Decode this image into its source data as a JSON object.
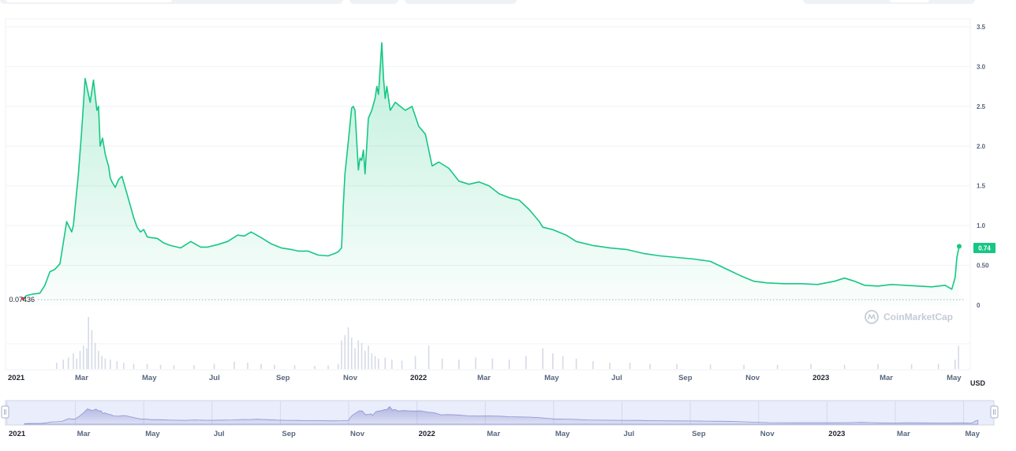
{
  "chart_data": {
    "type": "area",
    "currency_label": "USD",
    "start_value_label": "0.07436",
    "current_price_label": "0.74",
    "watermark": "CoinMarketCap",
    "y_ticks": [
      "0",
      "0.50",
      "1.0",
      "1.5",
      "2.0",
      "2.5",
      "3.0",
      "3.5"
    ],
    "y_tick_values": [
      0,
      0.5,
      1.0,
      1.5,
      2.0,
      2.5,
      3.0,
      3.5
    ],
    "ylim": [
      0,
      3.5
    ],
    "xlim": [
      0,
      28.75
    ],
    "grid": true,
    "x_ticks": [
      {
        "label": "2021",
        "at": 0,
        "strong": true
      },
      {
        "label": "Mar",
        "at": 2,
        "strong": false
      },
      {
        "label": "May",
        "at": 4,
        "strong": false
      },
      {
        "label": "Jul",
        "at": 6,
        "strong": false
      },
      {
        "label": "Sep",
        "at": 8,
        "strong": false
      },
      {
        "label": "Nov",
        "at": 10,
        "strong": false
      },
      {
        "label": "2022",
        "at": 12,
        "strong": true
      },
      {
        "label": "Mar",
        "at": 14,
        "strong": false
      },
      {
        "label": "May",
        "at": 16,
        "strong": false
      },
      {
        "label": "Jul",
        "at": 18,
        "strong": false
      },
      {
        "label": "Sep",
        "at": 20,
        "strong": false
      },
      {
        "label": "Nov",
        "at": 22,
        "strong": false
      },
      {
        "label": "2023",
        "at": 24,
        "strong": true
      },
      {
        "label": "Mar",
        "at": 26,
        "strong": false
      },
      {
        "label": "May",
        "at": 28,
        "strong": false
      }
    ],
    "navigator_ticks": [
      {
        "label": "2021",
        "at": 0,
        "strong": true
      },
      {
        "label": "Mar",
        "at": 2,
        "strong": false
      },
      {
        "label": "May",
        "at": 4,
        "strong": false
      },
      {
        "label": "Jul",
        "at": 6,
        "strong": false
      },
      {
        "label": "Sep",
        "at": 8,
        "strong": false
      },
      {
        "label": "Nov",
        "at": 10,
        "strong": false
      },
      {
        "label": "2022",
        "at": 12,
        "strong": true
      },
      {
        "label": "Mar",
        "at": 14,
        "strong": false
      },
      {
        "label": "May",
        "at": 16,
        "strong": false
      },
      {
        "label": "Jul",
        "at": 18,
        "strong": false
      },
      {
        "label": "Sep",
        "at": 20,
        "strong": false
      },
      {
        "label": "Nov",
        "at": 22,
        "strong": false
      },
      {
        "label": "2023",
        "at": 24,
        "strong": true
      },
      {
        "label": "Mar",
        "at": 26,
        "strong": false
      },
      {
        "label": "May",
        "at": 28,
        "strong": false
      }
    ],
    "series": [
      {
        "type": "line",
        "x": [
          0.5,
          0.6,
          0.8,
          1.0,
          1.15,
          1.3,
          1.45,
          1.6,
          1.8,
          1.95,
          2.0,
          2.15,
          2.25,
          2.35,
          2.5,
          2.6,
          2.7,
          2.75,
          2.8,
          2.87,
          2.95,
          3.0,
          3.05,
          3.1,
          3.15,
          3.25,
          3.35,
          3.45,
          3.6,
          3.8,
          3.9,
          4.0,
          4.1,
          4.2,
          4.3,
          4.5,
          4.7,
          4.9,
          5.2,
          5.5,
          5.8,
          6.0,
          6.3,
          6.6,
          6.9,
          7.1,
          7.3,
          7.6,
          7.9,
          8.2,
          8.5,
          8.7,
          9.0,
          9.3,
          9.6,
          9.8,
          9.9,
          10.0,
          10.05,
          10.1,
          10.2,
          10.3,
          10.35,
          10.4,
          10.5,
          10.55,
          10.6,
          10.65,
          10.7,
          10.75,
          10.8,
          10.9,
          11.0,
          11.05,
          11.1,
          11.2,
          11.25,
          11.3,
          11.35,
          11.45,
          11.6,
          11.75,
          11.9,
          12.1,
          12.3,
          12.5,
          12.7,
          12.9,
          13.2,
          13.5,
          13.8,
          14.1,
          14.4,
          14.7,
          15.0,
          15.3,
          15.6,
          15.9,
          16.0,
          16.3,
          16.7,
          17.0,
          17.5,
          18.0,
          18.5,
          19.0,
          19.5,
          20.0,
          20.5,
          21.0,
          21.5,
          21.9,
          22.3,
          22.7,
          23.2,
          23.7,
          24.2,
          24.7,
          25.0,
          25.3,
          25.6,
          26.0,
          26.4,
          26.8,
          27.2,
          27.6,
          28.0,
          28.2,
          28.3,
          28.35,
          28.42
        ],
        "y": [
          0.08,
          0.12,
          0.14,
          0.15,
          0.25,
          0.42,
          0.45,
          0.52,
          1.05,
          0.92,
          1.0,
          1.65,
          2.2,
          2.85,
          2.55,
          2.83,
          2.45,
          2.5,
          2.0,
          2.1,
          1.9,
          1.82,
          1.75,
          1.6,
          1.55,
          1.48,
          1.58,
          1.62,
          1.4,
          1.1,
          0.98,
          0.92,
          0.95,
          0.86,
          0.85,
          0.84,
          0.78,
          0.75,
          0.72,
          0.8,
          0.73,
          0.73,
          0.76,
          0.8,
          0.88,
          0.87,
          0.92,
          0.85,
          0.77,
          0.72,
          0.7,
          0.68,
          0.68,
          0.63,
          0.62,
          0.65,
          0.67,
          0.72,
          1.25,
          1.65,
          2.05,
          2.48,
          2.5,
          2.45,
          1.7,
          1.85,
          1.82,
          1.95,
          1.65,
          2.0,
          2.35,
          2.45,
          2.6,
          2.75,
          2.65,
          3.3,
          2.85,
          2.6,
          2.75,
          2.45,
          2.55,
          2.5,
          2.45,
          2.5,
          2.25,
          2.15,
          1.75,
          1.8,
          1.72,
          1.56,
          1.52,
          1.55,
          1.5,
          1.4,
          1.35,
          1.32,
          1.2,
          1.05,
          0.98,
          0.95,
          0.88,
          0.8,
          0.75,
          0.72,
          0.7,
          0.65,
          0.62,
          0.6,
          0.58,
          0.55,
          0.45,
          0.37,
          0.3,
          0.28,
          0.27,
          0.27,
          0.26,
          0.3,
          0.34,
          0.3,
          0.25,
          0.24,
          0.26,
          0.25,
          0.24,
          0.23,
          0.25,
          0.2,
          0.35,
          0.6,
          0.74
        ]
      },
      {
        "type": "volume_bar",
        "name": "",
        "x": [
          1.5,
          1.7,
          1.85,
          2.0,
          2.1,
          2.2,
          2.3,
          2.4,
          2.45,
          2.55,
          2.65,
          2.75,
          2.85,
          2.95,
          3.1,
          3.3,
          3.5,
          3.8,
          4.2,
          4.6,
          5.0,
          5.6,
          6.2,
          6.8,
          7.2,
          7.6,
          8.0,
          8.6,
          9.2,
          9.6,
          9.9,
          10.0,
          10.1,
          10.2,
          10.3,
          10.4,
          10.5,
          10.6,
          10.7,
          10.8,
          10.9,
          11.0,
          11.1,
          11.3,
          11.5,
          11.8,
          12.2,
          12.6,
          13.0,
          13.5,
          14.0,
          14.5,
          15.0,
          15.5,
          16.0,
          16.3,
          16.6,
          17.0,
          17.5,
          18.0,
          18.6,
          19.2,
          20.0,
          21.0,
          22.0,
          23.0,
          24.0,
          25.0,
          26.0,
          27.0,
          27.8,
          28.3,
          28.4
        ],
        "values": [
          0.12,
          0.18,
          0.22,
          0.3,
          0.2,
          0.35,
          0.45,
          0.4,
          1.0,
          0.75,
          0.5,
          0.35,
          0.25,
          0.2,
          0.18,
          0.15,
          0.12,
          0.1,
          0.1,
          0.08,
          0.07,
          0.07,
          0.1,
          0.14,
          0.12,
          0.1,
          0.08,
          0.07,
          0.06,
          0.07,
          0.1,
          0.55,
          0.65,
          0.8,
          0.6,
          0.4,
          0.55,
          0.5,
          0.35,
          0.45,
          0.3,
          0.25,
          0.2,
          0.22,
          0.18,
          0.16,
          0.25,
          0.45,
          0.2,
          0.18,
          0.22,
          0.2,
          0.18,
          0.25,
          0.4,
          0.3,
          0.25,
          0.2,
          0.15,
          0.12,
          0.12,
          0.1,
          0.1,
          0.09,
          0.08,
          0.08,
          0.1,
          0.08,
          0.1,
          0.09,
          0.1,
          0.18,
          0.45
        ]
      }
    ]
  }
}
